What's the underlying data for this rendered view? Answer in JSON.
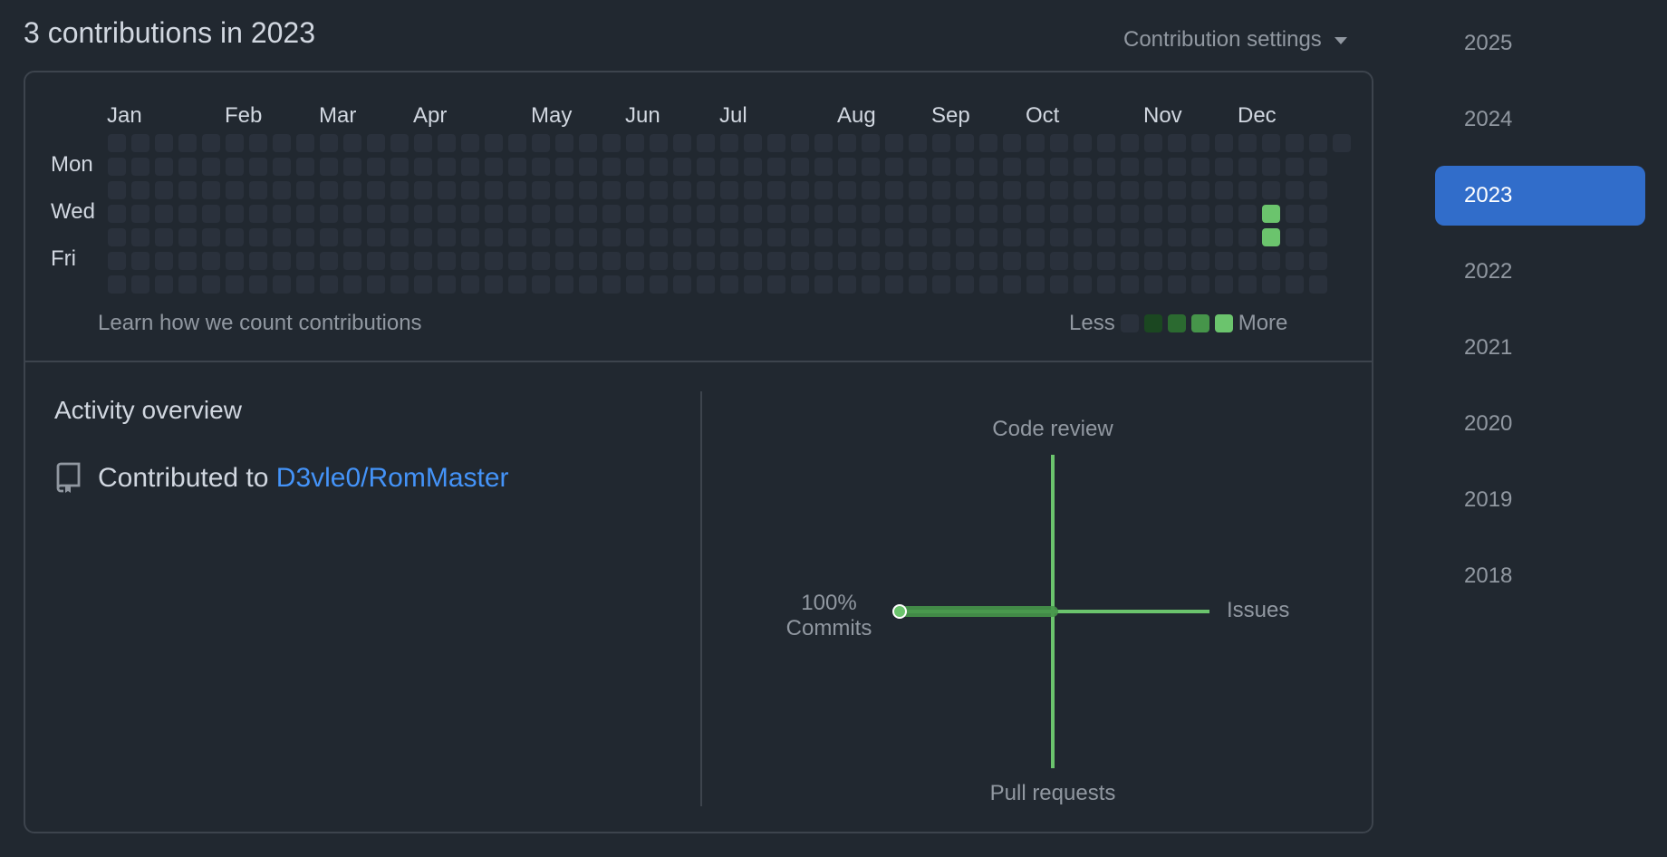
{
  "header": {
    "title": "3 contributions in 2023",
    "settings_label": "Contribution settings"
  },
  "calendar": {
    "months": [
      "Jan",
      "Feb",
      "Mar",
      "Apr",
      "May",
      "Jun",
      "Jul",
      "Aug",
      "Sep",
      "Oct",
      "Nov",
      "Dec"
    ],
    "day_labels": [
      "Mon",
      "Wed",
      "Fri"
    ],
    "weeks": 53,
    "active_cells": [
      {
        "week": 49,
        "day": 3,
        "level": 4
      },
      {
        "week": 49,
        "day": 4,
        "level": 4
      }
    ],
    "learn_link": "Learn how we count contributions",
    "legend": {
      "less": "Less",
      "more": "More",
      "levels": [
        "#2a313c",
        "#1b4721",
        "#2b6a30",
        "#46954a",
        "#6bc46d"
      ]
    }
  },
  "activity": {
    "title": "Activity overview",
    "contributed_prefix": "Contributed to",
    "repo": "D3vle0/RomMaster",
    "repo_icon": "repo-icon"
  },
  "radar": {
    "top": "Code review",
    "bottom": "Pull requests",
    "right": "Issues",
    "left_percent": "100%",
    "left_label": "Commits",
    "values": {
      "commits": 100,
      "code_review": 0,
      "issues": 0,
      "pull_requests": 0
    },
    "color": "#6bc46d"
  },
  "years": {
    "items": [
      "2025",
      "2024",
      "2023",
      "2022",
      "2021",
      "2020",
      "2019",
      "2018"
    ],
    "selected": "2023"
  }
}
